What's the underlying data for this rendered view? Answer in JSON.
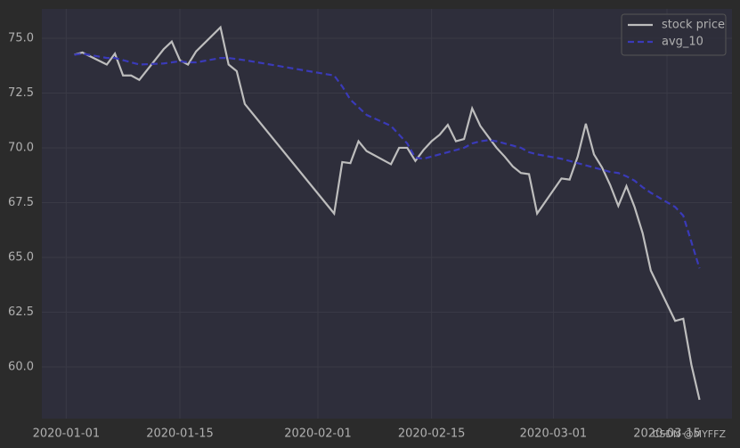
{
  "chart_data": {
    "type": "line",
    "x": [
      "2020-01-02",
      "2020-01-03",
      "2020-01-06",
      "2020-01-07",
      "2020-01-08",
      "2020-01-09",
      "2020-01-10",
      "2020-01-13",
      "2020-01-14",
      "2020-01-15",
      "2020-01-16",
      "2020-01-17",
      "2020-01-20",
      "2020-01-21",
      "2020-01-22",
      "2020-01-23",
      "2020-02-03",
      "2020-02-04",
      "2020-02-05",
      "2020-02-06",
      "2020-02-07",
      "2020-02-10",
      "2020-02-11",
      "2020-02-12",
      "2020-02-13",
      "2020-02-14",
      "2020-02-15",
      "2020-02-16",
      "2020-02-17",
      "2020-02-18",
      "2020-02-19",
      "2020-02-20",
      "2020-02-21",
      "2020-02-22",
      "2020-02-23",
      "2020-02-24",
      "2020-02-25",
      "2020-02-26",
      "2020-02-27",
      "2020-02-28",
      "2020-03-02",
      "2020-03-03",
      "2020-03-04",
      "2020-03-05",
      "2020-03-06",
      "2020-03-07",
      "2020-03-08",
      "2020-03-09",
      "2020-03-10",
      "2020-03-11",
      "2020-03-12",
      "2020-03-13",
      "2020-03-16",
      "2020-03-17",
      "2020-03-18",
      "2020-03-19"
    ],
    "series": [
      {
        "name": "stock price",
        "color": "#bdbdbd",
        "dash": false,
        "values": [
          74.25,
          74.35,
          73.8,
          74.3,
          73.3,
          73.3,
          73.1,
          74.5,
          74.85,
          74.0,
          73.8,
          74.4,
          75.5,
          73.8,
          73.5,
          72.0,
          67.0,
          69.35,
          69.3,
          70.3,
          69.85,
          69.25,
          70.0,
          70.0,
          69.4,
          69.9,
          70.3,
          70.6,
          71.05,
          70.3,
          70.4,
          71.8,
          71.0,
          70.5,
          70.0,
          69.6,
          69.15,
          68.85,
          68.8,
          67.0,
          68.6,
          68.55,
          69.6,
          71.1,
          69.7,
          69.1,
          68.3,
          67.35,
          68.25,
          67.3,
          66.1,
          64.4,
          62.1,
          62.2,
          60.1,
          58.5
        ]
      },
      {
        "name": "avg_10",
        "color": "#3a3ab8",
        "dash": true,
        "values": [
          74.25,
          74.3,
          74.1,
          74.1,
          74.0,
          73.9,
          73.8,
          73.85,
          73.9,
          73.95,
          73.9,
          73.9,
          74.1,
          74.1,
          74.05,
          74.0,
          73.3,
          72.8,
          72.2,
          71.85,
          71.5,
          71.0,
          70.6,
          70.2,
          69.55,
          69.5,
          69.6,
          69.7,
          69.8,
          69.9,
          70.0,
          70.2,
          70.3,
          70.35,
          70.3,
          70.2,
          70.1,
          70.0,
          69.8,
          69.7,
          69.5,
          69.4,
          69.3,
          69.2,
          69.1,
          69.0,
          68.9,
          68.85,
          68.7,
          68.5,
          68.2,
          67.95,
          67.3,
          66.9,
          65.7,
          64.5
        ]
      }
    ],
    "xlim": [
      "2019-12-29",
      "2020-03-23"
    ],
    "xticks": [
      "2020-01-01",
      "2020-01-15",
      "2020-02-01",
      "2020-02-15",
      "2020-03-01",
      "2020-03-15"
    ],
    "ylim": [
      57.64,
      76.34
    ],
    "yticks": [
      {
        "value": 60,
        "label": "60.0"
      },
      {
        "value": 62.5,
        "label": "62.5"
      },
      {
        "value": 65,
        "label": "65.0"
      },
      {
        "value": 67.5,
        "label": "67.5"
      },
      {
        "value": 70,
        "label": "70.0"
      },
      {
        "value": 72.5,
        "label": "72.5"
      },
      {
        "value": 75,
        "label": "75.0"
      }
    ],
    "grid": true,
    "legend": "upper right",
    "annotation": "CSDN @MYFFZ"
  }
}
